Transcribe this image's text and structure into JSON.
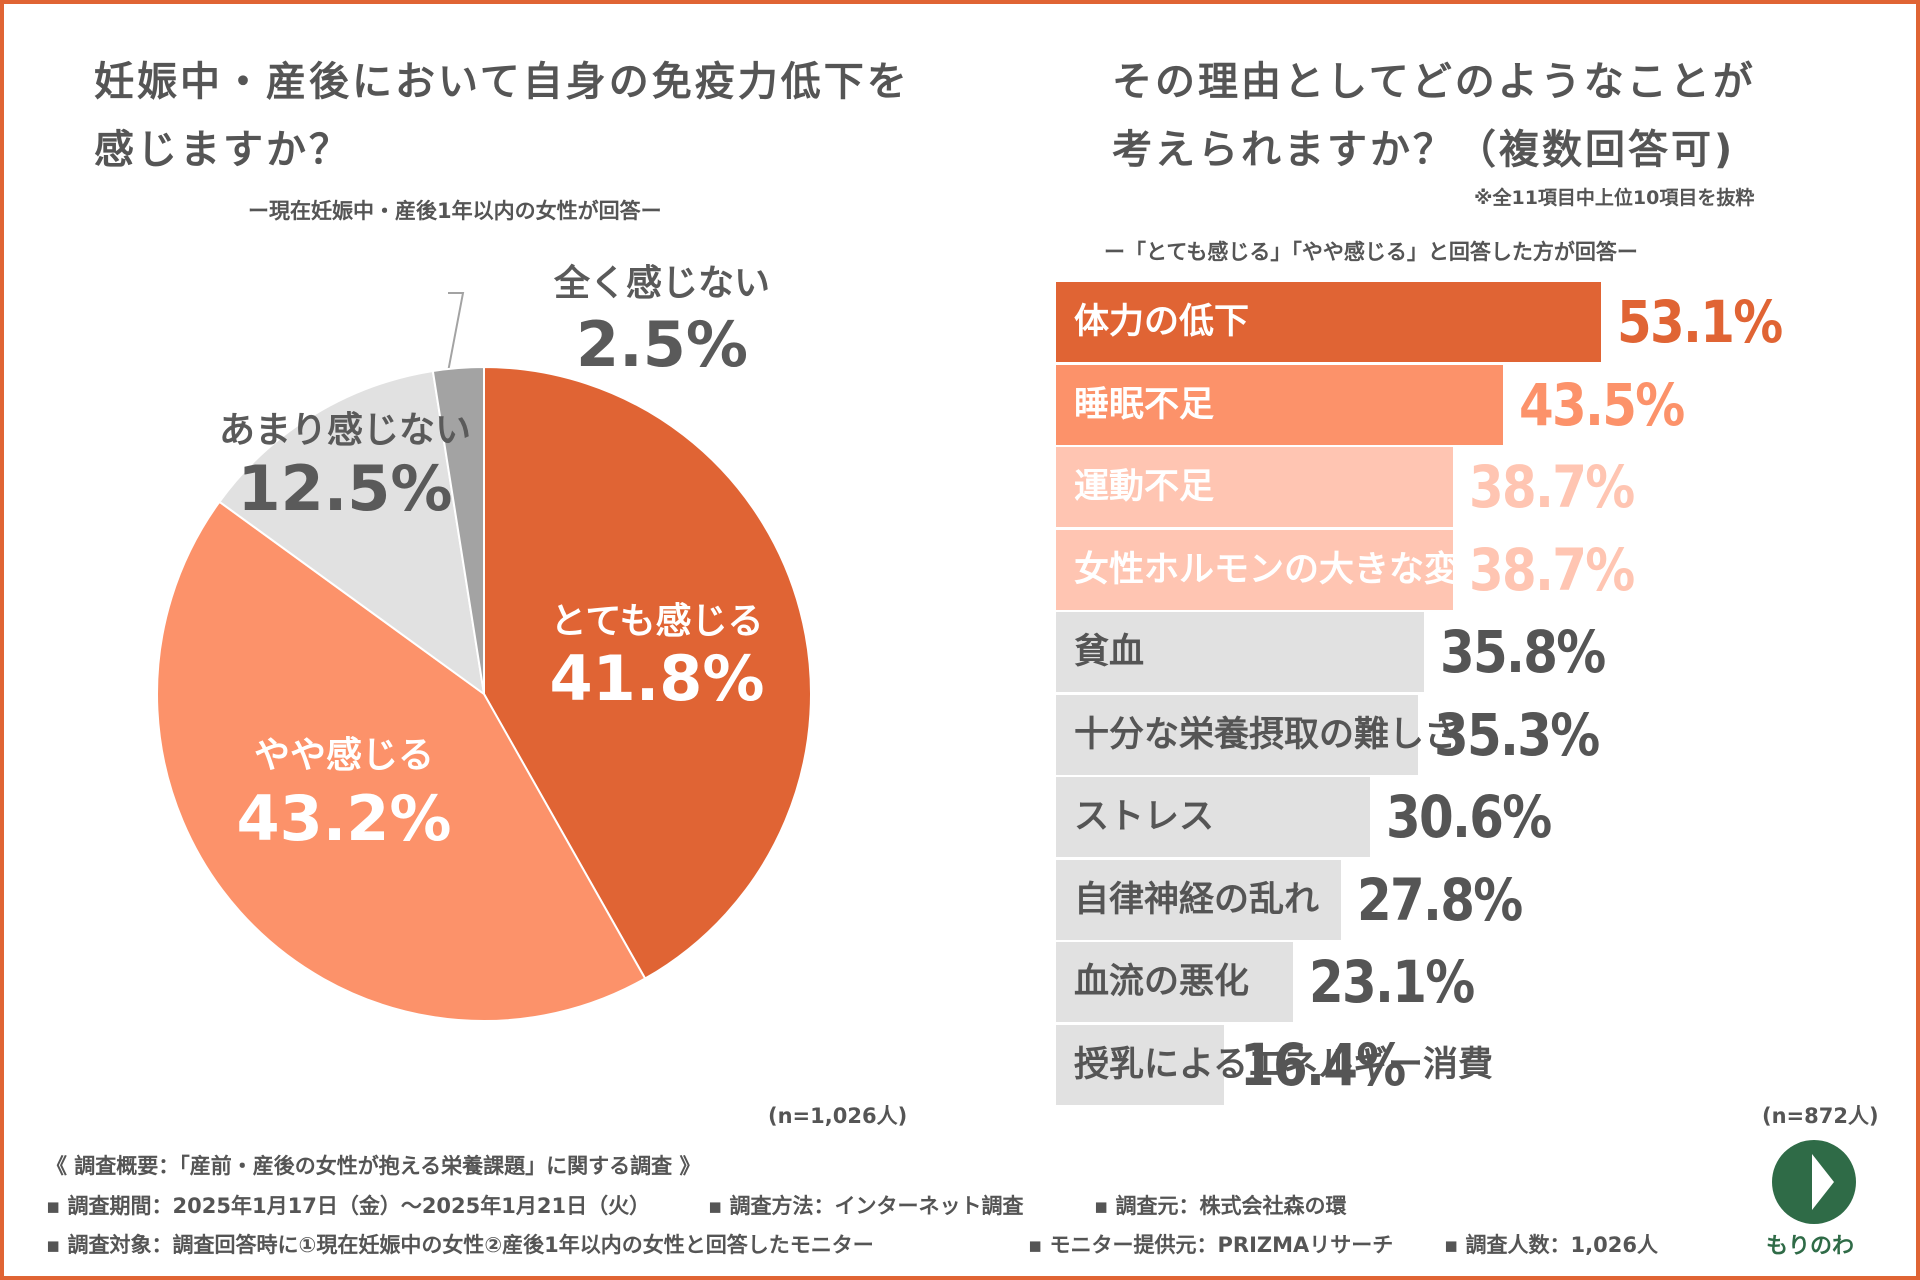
{
  "left": {
    "title_line1": "妊娠中・産後において自身の免疫力低下を",
    "title_line2": "感じますか？",
    "subtitle": "ー現在妊娠中・産後1年以内の女性が回答ー",
    "n": "(n=1,026人)"
  },
  "right": {
    "title_line1": "その理由としてどのようなことが",
    "title_line2": "考えられますか？（複数回答可)",
    "note": "※全11項目中上位10項目を抜粋",
    "subtitle": "ー「とても感じる」「やや感じる」と回答した方が回答ー",
    "n": "(n=872人)"
  },
  "chart_data": [
    {
      "type": "pie",
      "title": "妊娠中・産後において自身の免疫力低下を感じますか？",
      "slices": [
        {
          "label": "とても感じる",
          "value": 41.8,
          "display": "41.8%",
          "color": "#e06434",
          "text_color": "#ffffff"
        },
        {
          "label": "やや感じる",
          "value": 43.2,
          "display": "43.2%",
          "color": "#fc926a",
          "text_color": "#ffffff"
        },
        {
          "label": "あまり感じない",
          "value": 12.5,
          "display": "12.5%",
          "color": "#e1e1e1",
          "text_color": "#5a5a5a"
        },
        {
          "label": "全く感じない",
          "value": 2.5,
          "display": "2.5%",
          "color": "#a3a3a3",
          "text_color": "#5a5a5a"
        }
      ]
    },
    {
      "type": "bar",
      "orientation": "horizontal",
      "title": "その理由としてどのようなことが考えられますか？（複数回答可)",
      "xlim": [
        0,
        60
      ],
      "bars": [
        {
          "label": "体力の低下",
          "value": 53.1,
          "display": "53.1%",
          "color": "#e06434",
          "label_color": "#ffffff",
          "value_color": "#e06434"
        },
        {
          "label": "睡眠不足",
          "value": 43.5,
          "display": "43.5%",
          "color": "#fc926a",
          "label_color": "#ffffff",
          "value_color": "#fc926a"
        },
        {
          "label": "運動不足",
          "value": 38.7,
          "display": "38.7%",
          "color": "#ffc5b2",
          "label_color": "#ffffff",
          "value_color": "#ffc5b2"
        },
        {
          "label": "女性ホルモンの大きな変化",
          "value": 38.7,
          "display": "38.7%",
          "color": "#ffc5b2",
          "label_color": "#ffffff",
          "value_color": "#ffc5b2"
        },
        {
          "label": "貧血",
          "value": 35.8,
          "display": "35.8%",
          "color": "#e1e1e1",
          "label_color": "#555555",
          "value_color": "#555555"
        },
        {
          "label": "十分な栄養摂取の難しさ",
          "value": 35.3,
          "display": "35.3%",
          "color": "#e1e1e1",
          "label_color": "#555555",
          "value_color": "#555555"
        },
        {
          "label": "ストレス",
          "value": 30.6,
          "display": "30.6%",
          "color": "#e1e1e1",
          "label_color": "#555555",
          "value_color": "#555555"
        },
        {
          "label": "自律神経の乱れ",
          "value": 27.8,
          "display": "27.8%",
          "color": "#e1e1e1",
          "label_color": "#555555",
          "value_color": "#555555"
        },
        {
          "label": "血流の悪化",
          "value": 23.1,
          "display": "23.1%",
          "color": "#e1e1e1",
          "label_color": "#555555",
          "value_color": "#555555"
        },
        {
          "label": "授乳によるエネルギー消費",
          "value": 16.4,
          "display": "16.4%",
          "color": "#e1e1e1",
          "label_color": "#555555",
          "value_color": "#555555"
        }
      ]
    }
  ],
  "footer": {
    "line1": "《 調査概要：「産前・産後の女性が抱える栄養課題」に関する調査 》",
    "line2a": "▪ 調査期間：2025年1月17日（金）〜2025年1月21日（火）",
    "line2b": "▪ 調査方法：インターネット調査",
    "line2c": "▪ 調査元：株式会社森の環",
    "line3a": "▪ 調査対象：調査回答時に①現在妊娠中の女性②産後1年以内の女性と回答したモニター",
    "line3b": "▪ モニター提供元：PRIZMAリサーチ",
    "line3c": "▪ 調査人数：1,026人"
  },
  "logo": {
    "text": "もりのわ",
    "color": "#2f6b47"
  },
  "colors": {
    "border": "#e06434",
    "text": "#555555"
  }
}
